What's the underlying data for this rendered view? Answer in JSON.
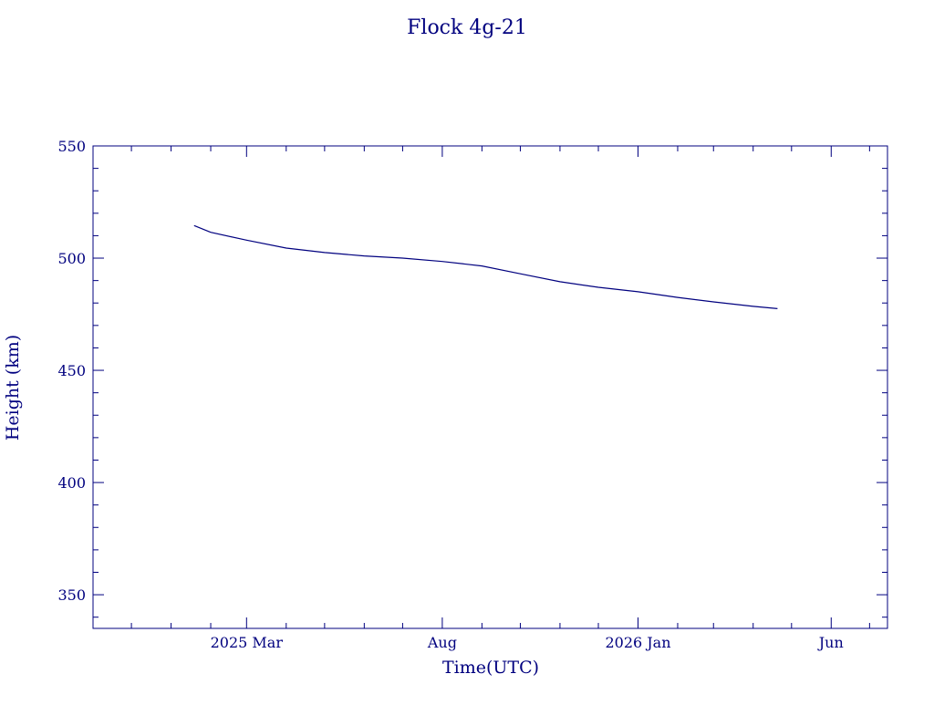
{
  "chart_data": {
    "type": "line",
    "title": "Flock 4g-21",
    "xlabel": "Time(UTC)",
    "ylabel": "Height (km)",
    "color": "#00007f",
    "grid": false,
    "legend": "none",
    "xlim": [
      "2024-11-01",
      "2026-07-15"
    ],
    "ylim": [
      335,
      550
    ],
    "y_ticks": [
      350,
      400,
      450,
      500,
      550
    ],
    "x_ticks": [
      {
        "date": "2025-03-01",
        "label": "2025 Mar"
      },
      {
        "date": "2025-08-01",
        "label": "Aug"
      },
      {
        "date": "2026-01-01",
        "label": "2026 Jan"
      },
      {
        "date": "2026-06-01",
        "label": "Jun"
      }
    ],
    "x_minor_ticks": [
      "2024-12-01",
      "2025-01-01",
      "2025-02-01",
      "2025-04-01",
      "2025-05-01",
      "2025-06-01",
      "2025-07-01",
      "2025-09-01",
      "2025-10-01",
      "2025-11-01",
      "2025-12-01",
      "2026-02-01",
      "2026-03-01",
      "2026-04-01",
      "2026-05-01",
      "2026-07-01"
    ],
    "y_minor_step": 10,
    "series": [
      {
        "x": [
          "2025-01-19",
          "2025-02-01",
          "2025-03-01",
          "2025-04-01",
          "2025-05-01",
          "2025-06-01",
          "2025-07-01",
          "2025-08-01",
          "2025-09-01",
          "2025-10-01",
          "2025-11-01",
          "2025-12-01",
          "2026-01-01",
          "2026-02-01",
          "2026-03-01",
          "2026-04-01",
          "2026-04-20"
        ],
        "y": [
          514.5,
          511.5,
          508.0,
          504.5,
          502.5,
          501.0,
          500.0,
          498.5,
          496.5,
          493.0,
          489.5,
          487.0,
          485.0,
          482.5,
          480.5,
          478.5,
          477.5
        ]
      }
    ]
  }
}
